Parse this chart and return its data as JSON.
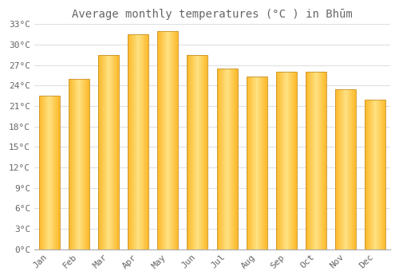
{
  "title": "Average monthly temperatures (°C ) in Bhūm",
  "months": [
    "Jan",
    "Feb",
    "Mar",
    "Apr",
    "May",
    "Jun",
    "Jul",
    "Aug",
    "Sep",
    "Oct",
    "Nov",
    "Dec"
  ],
  "temperatures": [
    22.5,
    25.0,
    28.5,
    31.5,
    32.0,
    28.5,
    26.5,
    25.3,
    26.0,
    26.0,
    23.5,
    22.0
  ],
  "bar_face_color": "#FDB827",
  "bar_edge_color": "#C8922A",
  "bar_highlight_color": "#FDD96E",
  "ylim": [
    0,
    33
  ],
  "yticks": [
    0,
    3,
    6,
    9,
    12,
    15,
    18,
    21,
    24,
    27,
    30,
    33
  ],
  "ytick_labels": [
    "0°C",
    "3°C",
    "6°C",
    "9°C",
    "12°C",
    "15°C",
    "18°C",
    "21°C",
    "24°C",
    "27°C",
    "30°C",
    "33°C"
  ],
  "background_color": "#ffffff",
  "grid_color": "#e0e0e0",
  "title_fontsize": 10,
  "tick_fontsize": 8,
  "font_color": "#666666",
  "bar_width": 0.7
}
